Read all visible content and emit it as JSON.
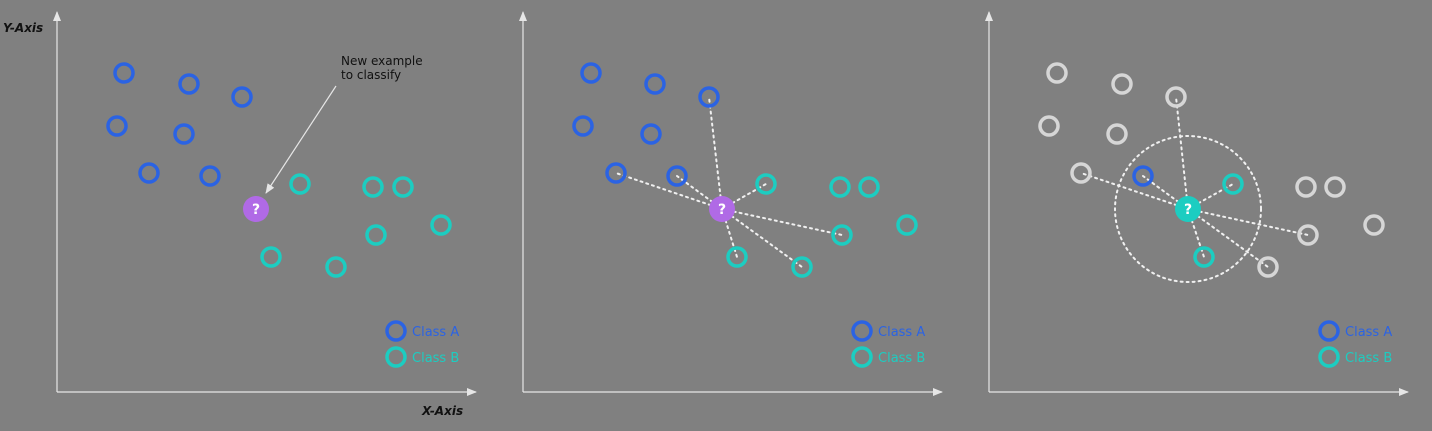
{
  "axes": {
    "y_label": "Y-Axis",
    "x_label": "X-Axis"
  },
  "annotation": {
    "line1": "New example",
    "line2": "to classify"
  },
  "legend": {
    "class_a": "Class A",
    "class_b": "Class B"
  },
  "query_symbol": "?",
  "colors": {
    "background": "#808080",
    "axis": "#e6e6e6",
    "class_a": "#2b63e3",
    "class_b": "#1ccdc1",
    "faded": "#d6d6d6",
    "query_unclassified": "#b06ae6",
    "query_classified": "#1ccdc1",
    "guide": "#f0f0f0"
  },
  "panels": [
    {
      "stage": "unclassified",
      "shows_axis_titles": true,
      "shows_annotation": true
    },
    {
      "stage": "distances",
      "shows_axis_titles": false,
      "shows_annotation": false
    },
    {
      "stage": "nearest-neighbors",
      "shows_axis_titles": false,
      "shows_annotation": false
    }
  ]
}
